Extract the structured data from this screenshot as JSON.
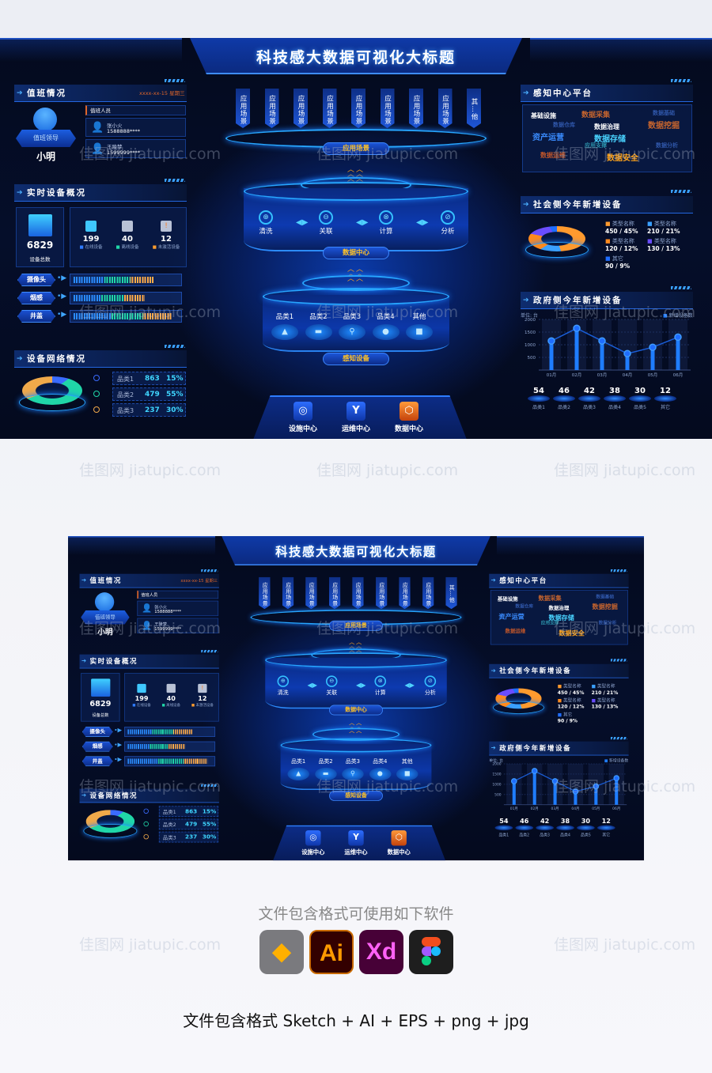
{
  "title": "科技感大数据可视化大标题",
  "duty": {
    "header": "值班情况",
    "date": "xxxx-xx-15 星期三",
    "leader_role": "值班领导",
    "leader_name": "小明",
    "staff_header": "值班人员",
    "staff": [
      {
        "name": "张小火",
        "phone": "1588888****"
      },
      {
        "name": "王陵梦",
        "phone": "1599999****"
      }
    ]
  },
  "devices": {
    "header": "实时设备概况",
    "total": "6829",
    "total_label": "设备总数",
    "status": [
      {
        "value": "199",
        "label": "在线设备",
        "color": "#2f7bff"
      },
      {
        "value": "40",
        "label": "离线设备",
        "color": "#20d6a8"
      },
      {
        "value": "12",
        "label": "未激活设备",
        "color": "#ff9d2e"
      }
    ],
    "bars": [
      {
        "label": "摄像头",
        "fill": 0.77
      },
      {
        "label": "烟感",
        "fill": 0.68
      },
      {
        "label": "井盖",
        "fill": 0.95
      }
    ]
  },
  "network": {
    "header": "设备网络情况",
    "rows": [
      {
        "name": "品类1",
        "value": "863",
        "pct": "15%",
        "color": "#3a6bff"
      },
      {
        "name": "品类2",
        "value": "479",
        "pct": "55%",
        "color": "#20d6a8"
      },
      {
        "name": "品类3",
        "value": "237",
        "pct": "30%",
        "color": "#f0a94a"
      }
    ]
  },
  "center": {
    "scenes": [
      "应用场景",
      "应用场景",
      "应用场景",
      "应用场景",
      "应用场景",
      "应用场景",
      "应用场景",
      "应用场景",
      "其…他"
    ],
    "scene_pill": "应用场景",
    "steps": [
      "清洗",
      "关联",
      "计算",
      "分析"
    ],
    "data_pill": "数据中心",
    "categories": [
      "品类1",
      "品类2",
      "品类3",
      "品类4",
      "其他"
    ],
    "sense_pill": "感知设备",
    "nav": [
      {
        "label": "设施中心",
        "active": false
      },
      {
        "label": "运维中心",
        "active": false
      },
      {
        "label": "数据中心",
        "active": true
      }
    ]
  },
  "perception": {
    "header": "感知中心平台",
    "words": [
      {
        "text": "基础设施",
        "color": "#ffffff"
      },
      {
        "text": "数据采集",
        "color": "#c7652e"
      },
      {
        "text": "数据基础",
        "color": "#2f56a8"
      },
      {
        "text": "数据仓库",
        "color": "#2f56a8"
      },
      {
        "text": "数据治理",
        "color": "#ffffff"
      },
      {
        "text": "数据挖掘",
        "color": "#c7652e"
      },
      {
        "text": "资产运营",
        "color": "#3a8cff"
      },
      {
        "text": "数据存储",
        "color": "#49d3ff"
      },
      {
        "text": "应用支撑",
        "color": "#2b8fa8"
      },
      {
        "text": "数据分析",
        "color": "#2f56a8"
      },
      {
        "text": "数据运维",
        "color": "#c0562a"
      },
      {
        "text": "数据安全",
        "color": "#ffa31a"
      }
    ]
  },
  "social": {
    "header": "社会侧今年新增设备",
    "legend": [
      {
        "name": "类型名称",
        "value": "450 / 45%",
        "color": "#ff9a2e",
        "pct": 45
      },
      {
        "name": "类型名称",
        "value": "210 / 21%",
        "color": "#3aa0ff",
        "pct": 21
      },
      {
        "name": "类型名称",
        "value": "120 / 12%",
        "color": "#ff8a1e",
        "pct": 12
      },
      {
        "name": "类型名称",
        "value": "130 / 13%",
        "color": "#6a4dff",
        "pct": 13
      },
      {
        "name": "其它",
        "value": "90 / 9%",
        "color": "#1f6dff",
        "pct": 9
      }
    ]
  },
  "gov": {
    "header": "政府侧今年新增设备",
    "unit": "单位: 台",
    "stats": [
      {
        "value": "54",
        "label": "品类1"
      },
      {
        "value": "46",
        "label": "品类2"
      },
      {
        "value": "42",
        "label": "品类3"
      },
      {
        "value": "38",
        "label": "品类4"
      },
      {
        "value": "30",
        "label": "品类5"
      },
      {
        "value": "12",
        "label": "其它"
      }
    ]
  },
  "chart_data": {
    "type": "bar+line",
    "categories": [
      "01月",
      "02月",
      "03月",
      "04月",
      "05月",
      "06月"
    ],
    "series": [
      {
        "name": "新增设备数",
        "values": [
          1150,
          1650,
          1150,
          650,
          900,
          1300
        ]
      }
    ],
    "yticks": [
      500,
      1000,
      1500,
      2000
    ],
    "ylim": [
      0,
      2000
    ],
    "ylabel": "单位: 台",
    "legend": "top-right",
    "grid": true,
    "color": "#1f7dff"
  },
  "footer": {
    "caption": "文件包含格式可使用如下软件",
    "apps": [
      {
        "name": "Sketch",
        "color": "#f7a800"
      },
      {
        "name": "Ai",
        "color": "#ff9a00"
      },
      {
        "name": "Xd",
        "color": "#ff61f6"
      },
      {
        "name": "Figma",
        "color": "#a259ff"
      }
    ],
    "formats": "文件包含格式 Sketch + AI + EPS + png + jpg"
  },
  "watermark": "佳图网 jiatupic.com"
}
